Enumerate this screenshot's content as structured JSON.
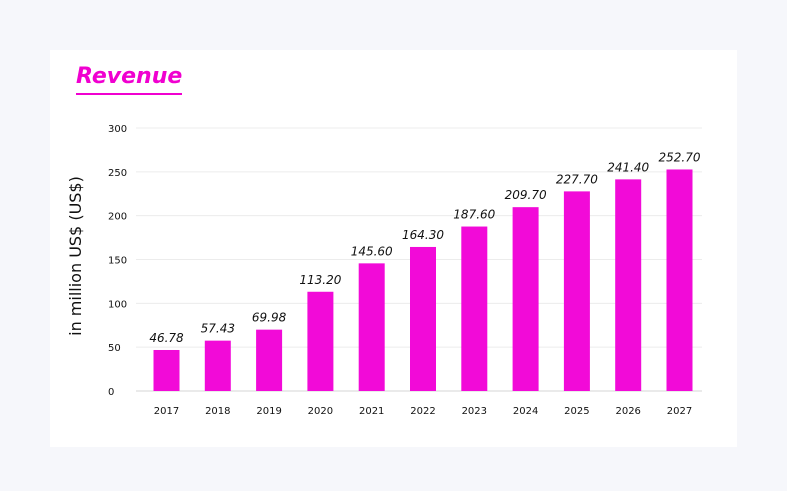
{
  "page": {
    "background": "#f6f7fb",
    "card_background": "#ffffff",
    "accent": "#f20ad8"
  },
  "chart_data": {
    "type": "bar",
    "title": "Revenue",
    "xlabel": "",
    "ylabel": "in million US$ (US$)",
    "categories": [
      "2017",
      "2018",
      "2019",
      "2020",
      "2021",
      "2022",
      "2023",
      "2024",
      "2025",
      "2026",
      "2027"
    ],
    "values": [
      46.78,
      57.43,
      69.98,
      113.2,
      145.6,
      164.3,
      187.6,
      209.7,
      227.7,
      241.4,
      252.7
    ],
    "data_labels": [
      "46.78",
      "57.43",
      "69.98",
      "113.20",
      "145.60",
      "164.30",
      "187.60",
      "209.70",
      "227.70",
      "241.40",
      "252.70"
    ],
    "ylim": [
      0,
      300
    ],
    "yticks": [
      "0",
      "50",
      "100",
      "150",
      "200",
      "250",
      "300"
    ],
    "grid": true,
    "legend": "none",
    "bar_color": "#f20ad8"
  }
}
